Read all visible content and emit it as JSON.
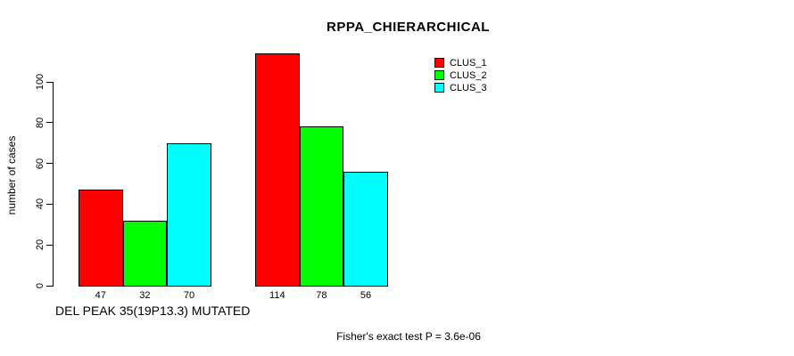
{
  "chart_data": {
    "type": "bar",
    "title": "RPPA_CHIERARCHICAL",
    "ylabel": "number of cases",
    "xlabel": "DEL PEAK 35(19P13.3) MUTATED",
    "annotation": "Fisher's exact test P = 3.6e-06",
    "y_ticks": [
      0,
      20,
      40,
      60,
      80,
      100
    ],
    "ylim": [
      0,
      115
    ],
    "grid": false,
    "legend_position": "top-right",
    "categories": [
      "DEL PEAK 35(19P13.3) MUTATED",
      ""
    ],
    "series": [
      {
        "name": "CLUS_1",
        "color": "#ff0000",
        "values": [
          47,
          114
        ]
      },
      {
        "name": "CLUS_2",
        "color": "#00ff00",
        "values": [
          32,
          78
        ]
      },
      {
        "name": "CLUS_3",
        "color": "#00ffff",
        "values": [
          70,
          56
        ]
      }
    ]
  },
  "colors": {
    "background": "#ffffff",
    "text": "#000000",
    "axis": "#000000",
    "bar_border": "#000000"
  }
}
